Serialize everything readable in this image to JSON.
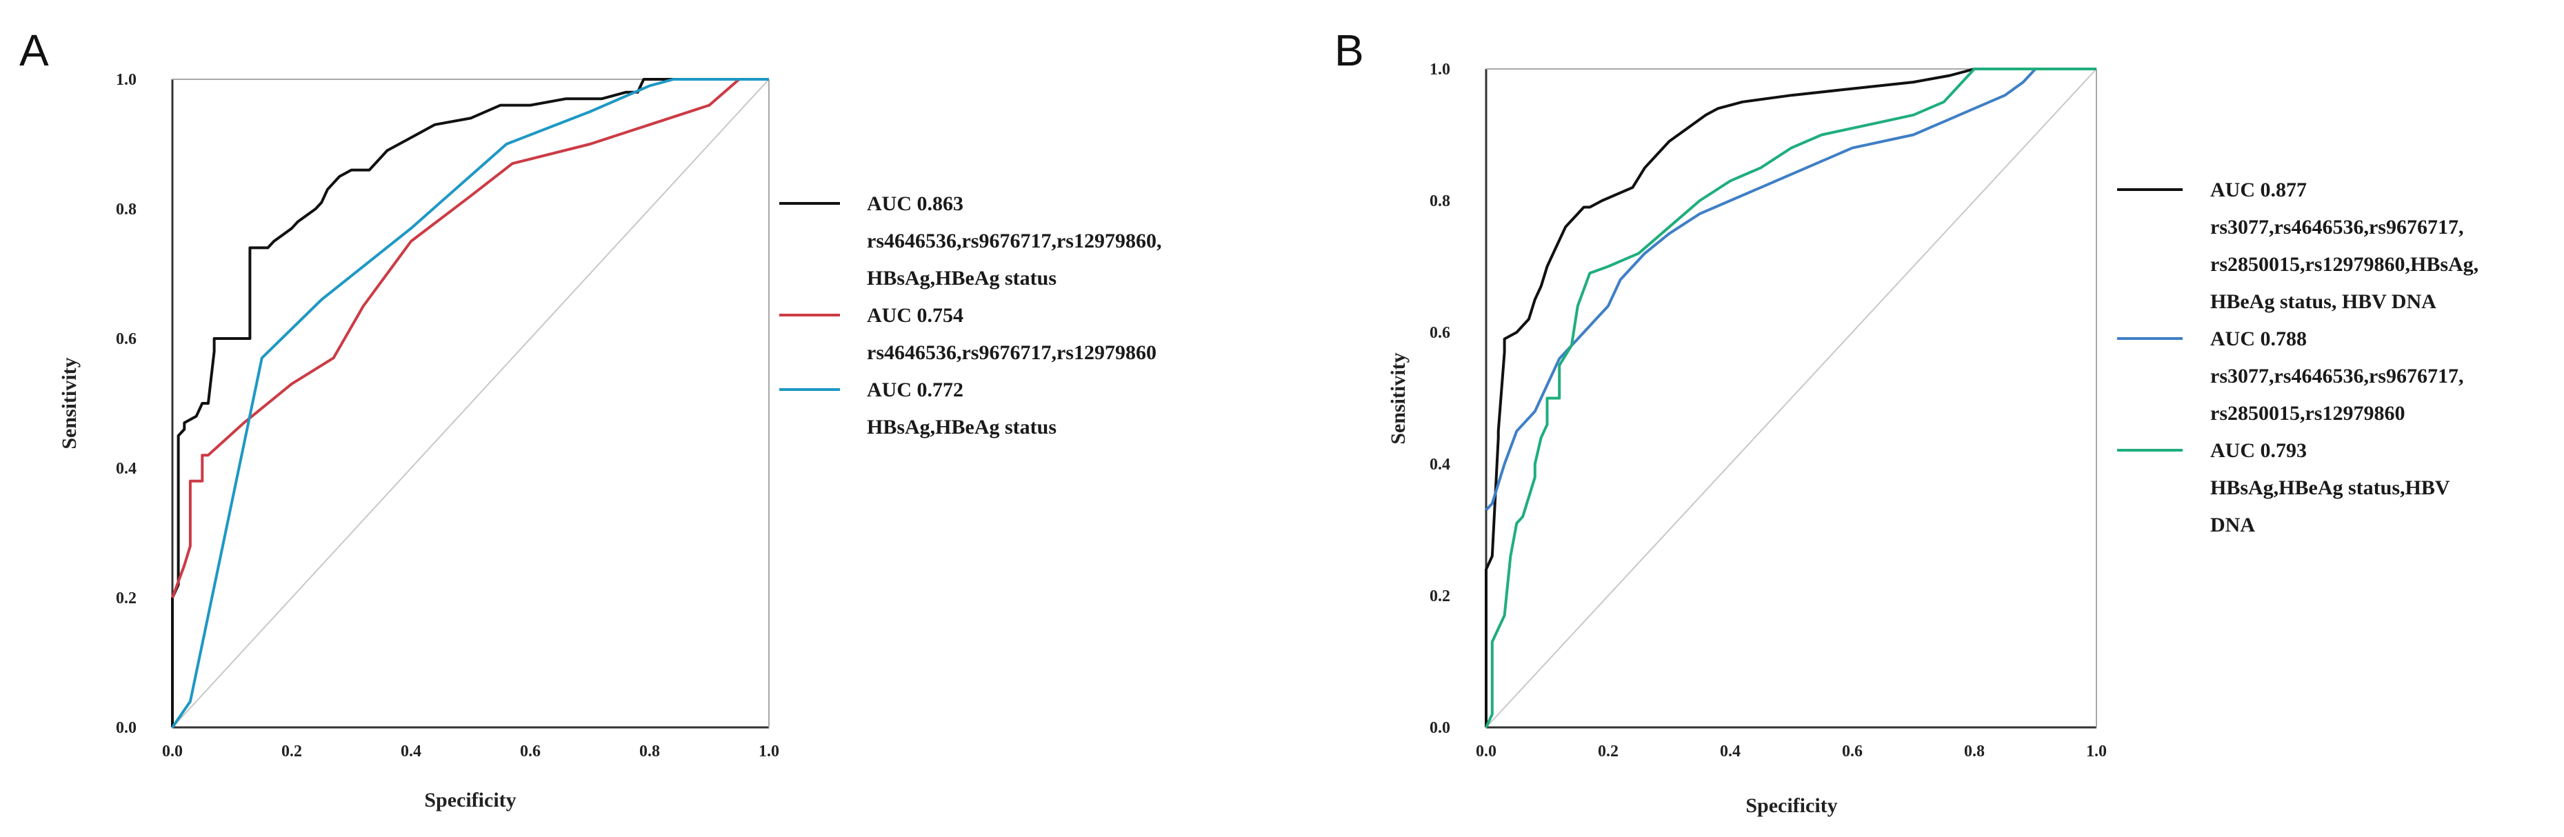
{
  "chart_data": [
    {
      "panel": "A",
      "type": "line",
      "title": "",
      "xlabel": "Specificity",
      "ylabel": "Sensitivity",
      "xlim": [
        0,
        1
      ],
      "ylim": [
        0,
        1
      ],
      "xticks": [
        "0.0",
        "0.2",
        "0.4",
        "0.6",
        "0.8",
        "1.0"
      ],
      "yticks": [
        "0.0",
        "0.2",
        "0.4",
        "0.6",
        "0.8",
        "1.0"
      ],
      "diagonal": true,
      "legend_position": "right",
      "series": [
        {
          "name": "AUC 0.863 rs4646536,rs9676717,rs12979860, HBsAg,HBeAg status",
          "legend_lines": [
            "AUC 0.863",
            "rs4646536,rs9676717,rs12979860,",
            "HBsAg,HBeAg status"
          ],
          "color": "#111111",
          "x": [
            0,
            0,
            0.01,
            0.01,
            0.02,
            0.02,
            0.04,
            0.05,
            0.06,
            0.07,
            0.07,
            0.08,
            0.13,
            0.13,
            0.16,
            0.17,
            0.2,
            0.21,
            0.24,
            0.25,
            0.26,
            0.28,
            0.3,
            0.33,
            0.35,
            0.36,
            0.4,
            0.44,
            0.5,
            0.55,
            0.6,
            0.66,
            0.72,
            0.76,
            0.78,
            0.79,
            1
          ],
          "y": [
            0,
            0.2,
            0.22,
            0.45,
            0.46,
            0.47,
            0.48,
            0.5,
            0.5,
            0.58,
            0.6,
            0.6,
            0.6,
            0.74,
            0.74,
            0.75,
            0.77,
            0.78,
            0.8,
            0.81,
            0.83,
            0.85,
            0.86,
            0.86,
            0.88,
            0.89,
            0.91,
            0.93,
            0.94,
            0.96,
            0.96,
            0.97,
            0.97,
            0.98,
            0.98,
            1,
            1
          ]
        },
        {
          "name": "AUC 0.754 rs4646536,rs9676717,rs12979860",
          "legend_lines": [
            "AUC 0.754",
            "rs4646536,rs9676717,rs12979860"
          ],
          "color": "#cc3b45",
          "x": [
            0,
            0.02,
            0.03,
            0.03,
            0.04,
            0.05,
            0.05,
            0.06,
            0.12,
            0.2,
            0.27,
            0.32,
            0.4,
            0.5,
            0.57,
            0.7,
            0.8,
            0.9,
            0.95,
            1
          ],
          "y": [
            0.2,
            0.25,
            0.28,
            0.38,
            0.38,
            0.38,
            0.42,
            0.42,
            0.47,
            0.53,
            0.57,
            0.65,
            0.75,
            0.82,
            0.87,
            0.9,
            0.93,
            0.96,
            1,
            1
          ]
        },
        {
          "name": "AUC 0.772 HBsAg,HBeAg status",
          "legend_lines": [
            "AUC 0.772",
            "HBsAg,HBeAg status"
          ],
          "color": "#1e98c4",
          "x": [
            0,
            0.03,
            0.15,
            0.25,
            0.4,
            0.56,
            0.7,
            0.8,
            0.84,
            1
          ],
          "y": [
            0,
            0.04,
            0.57,
            0.66,
            0.77,
            0.9,
            0.95,
            0.99,
            1,
            1
          ]
        }
      ]
    },
    {
      "panel": "B",
      "type": "line",
      "title": "",
      "xlabel": "Specificity",
      "ylabel": "Sensitivity",
      "xlim": [
        0,
        1
      ],
      "ylim": [
        0,
        1
      ],
      "xticks": [
        "0.0",
        "0.2",
        "0.4",
        "0.6",
        "0.8",
        "1.0"
      ],
      "yticks": [
        "0.0",
        "0.2",
        "0.4",
        "0.6",
        "0.8",
        "1.0"
      ],
      "diagonal": true,
      "legend_position": "right",
      "series": [
        {
          "name": "AUC 0.877 rs3077,rs4646536,rs9676717, rs2850015,rs12979860,HBsAg, HBeAg status, HBV DNA",
          "legend_lines": [
            "AUC 0.877",
            "rs3077,rs4646536,rs9676717,",
            "rs2850015,rs12979860,HBsAg,",
            "HBeAg status, HBV DNA"
          ],
          "color": "#111111",
          "x": [
            0,
            0,
            0.01,
            0.02,
            0.02,
            0.03,
            0.03,
            0.05,
            0.07,
            0.08,
            0.09,
            0.1,
            0.11,
            0.12,
            0.13,
            0.14,
            0.15,
            0.16,
            0.17,
            0.19,
            0.24,
            0.26,
            0.28,
            0.3,
            0.33,
            0.36,
            0.38,
            0.42,
            0.5,
            0.6,
            0.7,
            0.76,
            0.8,
            1
          ],
          "y": [
            0,
            0.24,
            0.26,
            0.44,
            0.45,
            0.57,
            0.59,
            0.6,
            0.62,
            0.65,
            0.67,
            0.7,
            0.72,
            0.74,
            0.76,
            0.77,
            0.78,
            0.79,
            0.79,
            0.8,
            0.82,
            0.85,
            0.87,
            0.89,
            0.91,
            0.93,
            0.94,
            0.95,
            0.96,
            0.97,
            0.98,
            0.99,
            1,
            1
          ]
        },
        {
          "name": "AUC 0.788 rs3077,rs4646536,rs9676717, rs2850015,rs12979860",
          "legend_lines": [
            "AUC 0.788",
            "rs3077,rs4646536,rs9676717,",
            "rs2850015,rs12979860"
          ],
          "color": "#3f7fc6",
          "x": [
            0,
            0.01,
            0.03,
            0.05,
            0.08,
            0.1,
            0.12,
            0.15,
            0.18,
            0.2,
            0.22,
            0.26,
            0.3,
            0.35,
            0.4,
            0.45,
            0.5,
            0.55,
            0.6,
            0.7,
            0.75,
            0.8,
            0.85,
            0.88,
            0.9
          ],
          "y": [
            0.33,
            0.34,
            0.4,
            0.45,
            0.48,
            0.52,
            0.56,
            0.59,
            0.62,
            0.64,
            0.68,
            0.72,
            0.75,
            0.78,
            0.8,
            0.82,
            0.84,
            0.86,
            0.88,
            0.9,
            0.92,
            0.94,
            0.96,
            0.98,
            1
          ]
        },
        {
          "name": "AUC 0.793 HBsAg,HBeAg status,HBV DNA",
          "legend_lines": [
            "AUC 0.793",
            "HBsAg,HBeAg status,HBV",
            "DNA"
          ],
          "color": "#1fae7c",
          "x": [
            0,
            0.01,
            0.01,
            0.03,
            0.04,
            0.05,
            0.06,
            0.08,
            0.08,
            0.09,
            0.1,
            0.1,
            0.12,
            0.12,
            0.14,
            0.15,
            0.17,
            0.2,
            0.25,
            0.3,
            0.35,
            0.4,
            0.45,
            0.5,
            0.55,
            0.65,
            0.7,
            0.75,
            0.8,
            1
          ],
          "y": [
            0,
            0.02,
            0.13,
            0.17,
            0.26,
            0.31,
            0.32,
            0.38,
            0.4,
            0.44,
            0.46,
            0.5,
            0.5,
            0.55,
            0.58,
            0.64,
            0.69,
            0.7,
            0.72,
            0.76,
            0.8,
            0.83,
            0.85,
            0.88,
            0.9,
            0.92,
            0.93,
            0.95,
            1,
            1
          ]
        }
      ]
    }
  ]
}
